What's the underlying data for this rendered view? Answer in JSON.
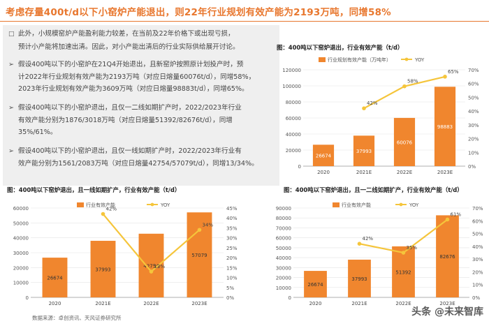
{
  "title": "考虑存量400t/d以下小窑炉产能退出，则22年行业规划有效产能为2193万吨，同增58%",
  "bullets": [
    {
      "marker": "□",
      "lines": [
        "此外，小规模窑炉产能盈利能力较差，在当前及22年价格下或出现亏损，",
        "预计小产能将加速出清。因此，对小产能出清后的行业实际供给展开讨论。"
      ]
    },
    {
      "marker": "➢",
      "lines": [
        "假设400吨以下的小窑炉在21Q4开始退出，且新窑炉按照原计划投产时，预",
        "计2022年行业规划有效产能为2193万吨（对应日熔量60076t/d），同增58%，",
        "2023年行业规划有效产能为3609万吨（对应日熔量98883t/d），同增65%。"
      ]
    },
    {
      "marker": "➢",
      "lines": [
        "假设400吨以下的小窑炉退出，且仅一二线如期扩产时，2022/2023年行业",
        "有效产能分别为1876/3018万吨（对应日熔量51392/82676t/d），同增",
        "35%/61%。"
      ]
    },
    {
      "marker": "➢",
      "lines": [
        "假设400吨以下的小窑炉退出，且仅一线如期扩产时，2022/2023年行业有",
        "效产能分别为1561/2083万吨（对应日熔量42754/57079t/d），同增13/34%。"
      ]
    }
  ],
  "captions": {
    "c1": "图：400吨以下窑炉退出，行业有效产能（t/d）",
    "c2": "图：400吨以下窑炉退出，且一线如期扩产，行业有效产能（t/d）",
    "c3": "图：400吨以下窑炉退出，且一二线如期扩产，行业有效产能（t/d）"
  },
  "source": "数据来源：卓创资讯、天风证券研究所",
  "watermark": "头条 @未来智库",
  "chart_data": [
    {
      "type": "bar",
      "categories": [
        "2020",
        "2021E",
        "2022E",
        "2023E"
      ],
      "series": [
        {
          "name": "行业规划有效产能（万吨年）",
          "values": [
            26674,
            37993,
            60076,
            98883
          ],
          "axis": "left"
        },
        {
          "name": "YOY",
          "type": "line",
          "values": [
            null,
            42,
            58,
            65
          ],
          "labels": [
            "",
            "42%",
            "58%",
            "65%"
          ],
          "axis": "right"
        }
      ],
      "ylim": [
        0,
        120000
      ],
      "yticks": [
        0,
        20000,
        40000,
        60000,
        80000,
        100000,
        120000
      ],
      "y2lim": [
        0,
        70
      ],
      "y2ticks": [
        0,
        10,
        20,
        30,
        40,
        50,
        60,
        70
      ],
      "colors": {
        "bar": "#f0862e",
        "line": "#f5c53b",
        "label": "#ffffff"
      },
      "legend": "top"
    },
    {
      "type": "bar",
      "categories": [
        "2020",
        "2021E",
        "2022E",
        "2023E"
      ],
      "series": [
        {
          "name": "行业有效产能",
          "values": [
            26674,
            37993,
            42754,
            57079
          ],
          "axis": "left"
        },
        {
          "name": "YOY",
          "type": "line",
          "values": [
            null,
            42,
            13,
            34
          ],
          "labels": [
            "",
            "42%",
            "13%",
            "34%"
          ],
          "axis": "right"
        }
      ],
      "ylim": [
        0,
        60000
      ],
      "yticks": [
        0,
        10000,
        20000,
        30000,
        40000,
        50000,
        60000
      ],
      "y2lim": [
        0,
        45
      ],
      "y2ticks": [
        0,
        5,
        10,
        15,
        20,
        25,
        30,
        35,
        40,
        45
      ],
      "colors": {
        "bar": "#f0862e",
        "line": "#f5c53b",
        "label": "#333333"
      },
      "legend": "top"
    },
    {
      "type": "bar",
      "categories": [
        "2020",
        "2021E",
        "2022E",
        "2023E"
      ],
      "series": [
        {
          "name": "行业有效产能",
          "values": [
            26674,
            37993,
            51392,
            82676
          ],
          "axis": "left"
        },
        {
          "name": "YOY",
          "type": "line",
          "values": [
            null,
            42,
            35,
            61
          ],
          "labels": [
            "",
            "42%",
            "35%",
            "61%"
          ],
          "axis": "right"
        }
      ],
      "ylim": [
        0,
        90000
      ],
      "yticks": [
        0,
        10000,
        20000,
        30000,
        40000,
        50000,
        60000,
        70000,
        80000,
        90000
      ],
      "y2lim": [
        0,
        70
      ],
      "y2ticks": [
        0,
        10,
        20,
        30,
        40,
        50,
        60,
        70
      ],
      "colors": {
        "bar": "#f0862e",
        "line": "#f5c53b",
        "label": "#333333"
      },
      "legend": "top"
    }
  ]
}
